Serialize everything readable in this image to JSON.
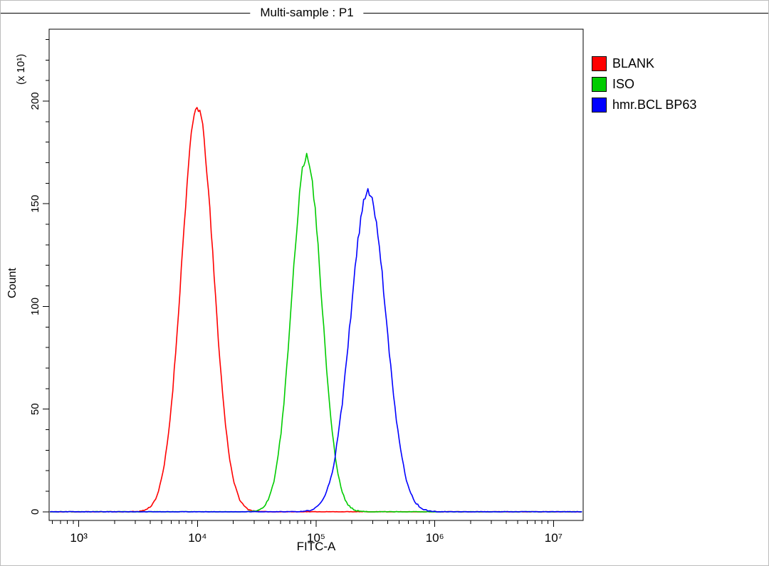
{
  "chart_data": {
    "type": "line",
    "subtype": "flow-cytometry-histogram-overlay",
    "title": "Multi-sample : P1",
    "xlabel": "FITC-A",
    "ylabel": "Count",
    "y_unit_label": "(x 10¹)",
    "x_scale": "log10",
    "x_log_range": [
      2.75,
      7.25
    ],
    "y_range": [
      -4.2,
      235
    ],
    "grid": false,
    "legend_position": "right",
    "x_ticks": [
      {
        "log10": 3,
        "label": "10³"
      },
      {
        "log10": 4,
        "label": "10⁴"
      },
      {
        "log10": 5,
        "label": "10⁵"
      },
      {
        "log10": 6,
        "label": "10⁶"
      },
      {
        "log10": 7,
        "label": "10⁷"
      }
    ],
    "y_ticks": [
      {
        "value": 0,
        "label": "0"
      },
      {
        "value": 50,
        "label": "50"
      },
      {
        "value": 100,
        "label": "100"
      },
      {
        "value": 150,
        "label": "150"
      },
      {
        "value": 200,
        "label": "200"
      }
    ],
    "y_minor_step": 10,
    "series": [
      {
        "name": "BLANK",
        "color": "#ff0000",
        "peak_x": 10000,
        "peak_log10": 4.0,
        "sigma_log10": 0.135,
        "peak_count": 197,
        "seed": 11
      },
      {
        "name": "ISO",
        "color": "#00cc00",
        "peak_x": 84000,
        "peak_log10": 4.92,
        "sigma_log10": 0.125,
        "peak_count": 173,
        "seed": 23
      },
      {
        "name": "hmr.BCL BP63",
        "color": "#0000ff",
        "peak_x": 280000,
        "peak_log10": 5.44,
        "sigma_log10": 0.15,
        "peak_count": 156,
        "seed": 37
      }
    ],
    "legend": [
      {
        "label": "BLANK",
        "color": "#ff0000"
      },
      {
        "label": "ISO",
        "color": "#00cc00"
      },
      {
        "label": "hmr.BCL BP63",
        "color": "#0000ff"
      }
    ]
  }
}
